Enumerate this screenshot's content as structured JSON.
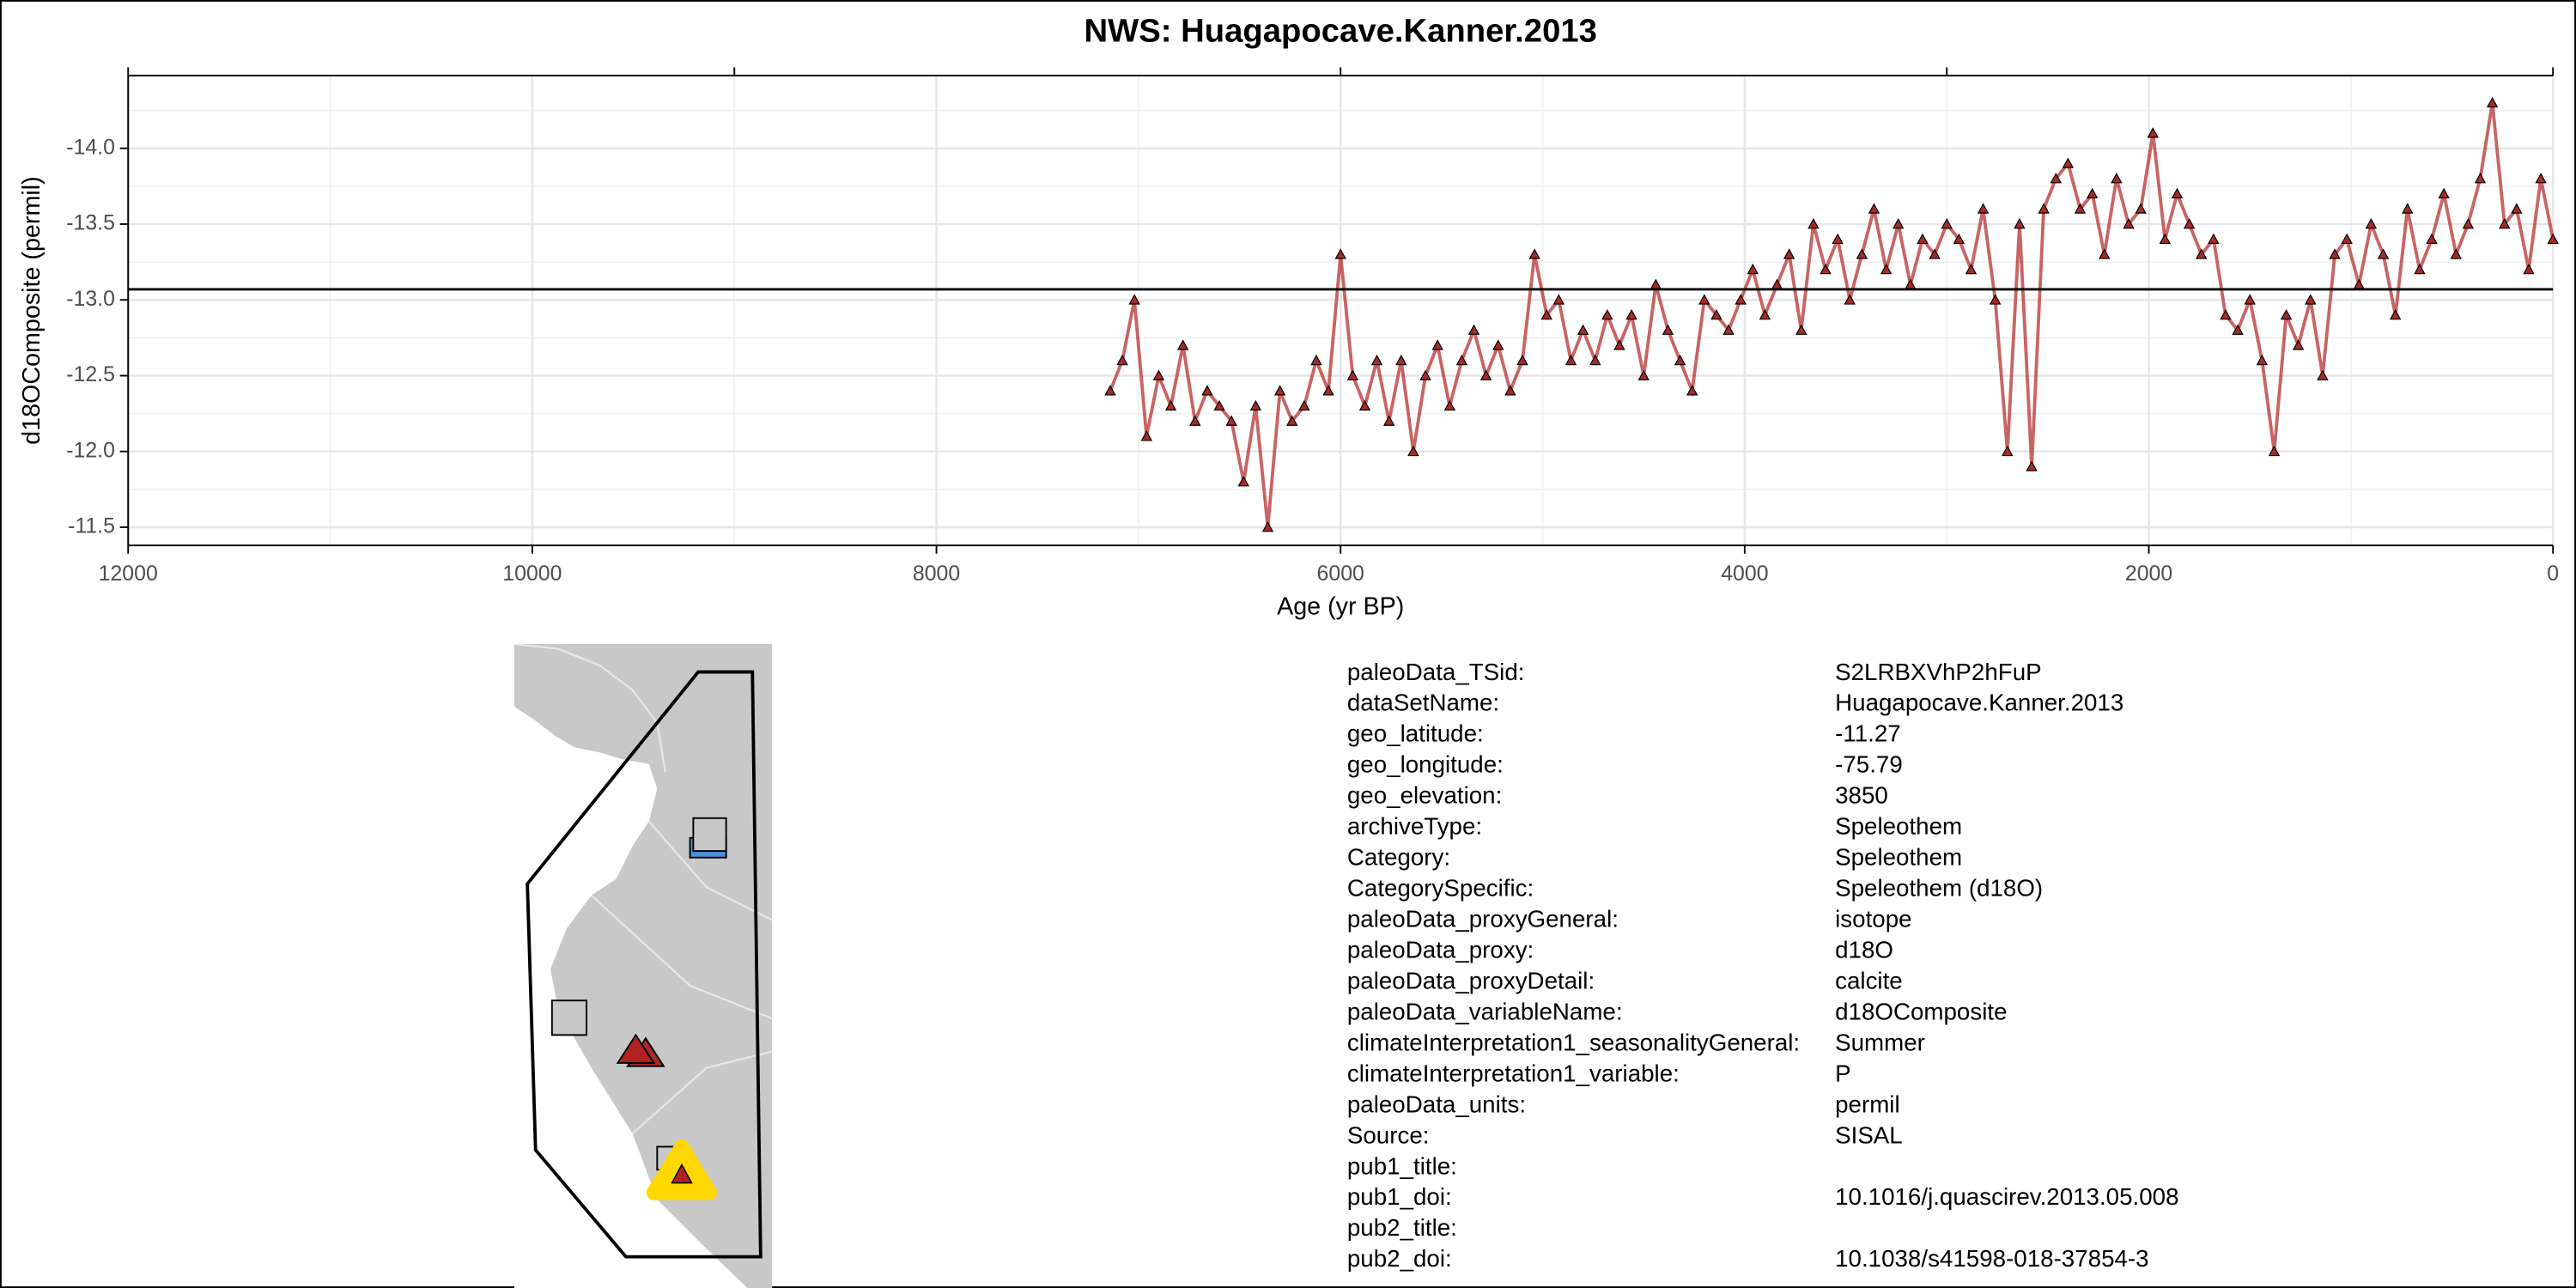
{
  "chart_data": {
    "type": "line",
    "title": "NWS: Huagapocave.Kanner.2013",
    "x_label": "Age (yr BP)",
    "y_label": "d18OComposite (permil)",
    "xlim": [
      12000,
      0
    ],
    "xticks": [
      12000,
      10000,
      8000,
      6000,
      4000,
      2000,
      0
    ],
    "x_minor_ticks": [
      11000,
      9000,
      7000,
      5000,
      3000,
      1000
    ],
    "top_ticks": [
      12000,
      9000,
      6000,
      3000,
      0
    ],
    "ylim": [
      -11.38,
      -14.48
    ],
    "yticks": [
      {
        "value": -14.0,
        "label": "-14.0"
      },
      {
        "value": -13.5,
        "label": "-13.5"
      },
      {
        "value": -13.0,
        "label": "-13.0"
      },
      {
        "value": -12.5,
        "label": "-12.5"
      },
      {
        "value": -12.0,
        "label": "-12.0"
      },
      {
        "value": -11.5,
        "label": "-11.5"
      }
    ],
    "y_minor_ticks": [
      -14.25,
      -13.75,
      -13.25,
      -12.75,
      -12.25,
      -11.75
    ],
    "grid": true,
    "hline": -13.07,
    "series": [
      {
        "name": "d18OComposite",
        "color": "#b22222",
        "marker_color": "#a52a2a",
        "x": [
          7140,
          7080,
          7020,
          6960,
          6900,
          6840,
          6780,
          6720,
          6660,
          6600,
          6540,
          6480,
          6420,
          6360,
          6300,
          6240,
          6180,
          6120,
          6060,
          6000,
          5940,
          5880,
          5820,
          5760,
          5700,
          5640,
          5580,
          5520,
          5460,
          5400,
          5340,
          5280,
          5220,
          5160,
          5100,
          5040,
          4980,
          4920,
          4860,
          4800,
          4740,
          4680,
          4620,
          4560,
          4500,
          4440,
          4380,
          4320,
          4260,
          4200,
          4140,
          4080,
          4020,
          3960,
          3900,
          3840,
          3780,
          3720,
          3660,
          3600,
          3540,
          3480,
          3420,
          3360,
          3300,
          3240,
          3180,
          3120,
          3060,
          3000,
          2940,
          2880,
          2820,
          2760,
          2700,
          2640,
          2580,
          2520,
          2460,
          2400,
          2340,
          2280,
          2220,
          2160,
          2100,
          2040,
          1980,
          1920,
          1860,
          1800,
          1740,
          1680,
          1620,
          1560,
          1500,
          1440,
          1380,
          1320,
          1260,
          1200,
          1140,
          1080,
          1020,
          960,
          900,
          840,
          780,
          720,
          660,
          600,
          540,
          480,
          420,
          360,
          300,
          240,
          180,
          120,
          60,
          0
        ],
        "values": [
          -12.4,
          -12.6,
          -13.0,
          -12.1,
          -12.5,
          -12.3,
          -12.7,
          -12.2,
          -12.4,
          -12.3,
          -12.2,
          -11.8,
          -12.3,
          -11.5,
          -12.4,
          -12.2,
          -12.3,
          -12.6,
          -12.4,
          -13.3,
          -12.5,
          -12.3,
          -12.6,
          -12.2,
          -12.6,
          -12.0,
          -12.5,
          -12.7,
          -12.3,
          -12.6,
          -12.8,
          -12.5,
          -12.7,
          -12.4,
          -12.6,
          -13.3,
          -12.9,
          -13.0,
          -12.6,
          -12.8,
          -12.6,
          -12.9,
          -12.7,
          -12.9,
          -12.5,
          -13.1,
          -12.8,
          -12.6,
          -12.4,
          -13.0,
          -12.9,
          -12.8,
          -13.0,
          -13.2,
          -12.9,
          -13.1,
          -13.3,
          -12.8,
          -13.5,
          -13.2,
          -13.4,
          -13.0,
          -13.3,
          -13.6,
          -13.2,
          -13.5,
          -13.1,
          -13.4,
          -13.3,
          -13.5,
          -13.4,
          -13.2,
          -13.6,
          -13.0,
          -12.0,
          -13.5,
          -11.9,
          -13.6,
          -13.8,
          -13.9,
          -13.6,
          -13.7,
          -13.3,
          -13.8,
          -13.5,
          -13.6,
          -14.1,
          -13.4,
          -13.7,
          -13.5,
          -13.3,
          -13.4,
          -12.9,
          -12.8,
          -13.0,
          -12.6,
          -12.0,
          -12.9,
          -12.7,
          -13.0,
          -12.5,
          -13.3,
          -13.4,
          -13.1,
          -13.5,
          -13.3,
          -12.9,
          -13.6,
          -13.2,
          -13.4,
          -13.7,
          -13.3,
          -13.5,
          -13.8,
          -14.3,
          -13.5,
          -13.6,
          -13.2,
          -13.8,
          -13.4
        ]
      }
    ]
  },
  "metadata": {
    "rows": [
      [
        "paleoData_TSid:",
        "S2LRBXVhP2hFuP"
      ],
      [
        "dataSetName:",
        "Huagapocave.Kanner.2013"
      ],
      [
        "geo_latitude:",
        "-11.27"
      ],
      [
        "geo_longitude:",
        "-75.79"
      ],
      [
        "geo_elevation:",
        "3850"
      ],
      [
        "archiveType:",
        "Speleothem"
      ],
      [
        "Category:",
        "Speleothem"
      ],
      [
        "CategorySpecific:",
        "Speleothem (d18O)"
      ],
      [
        "paleoData_proxyGeneral:",
        "isotope"
      ],
      [
        "paleoData_proxy:",
        "d18O"
      ],
      [
        "paleoData_proxyDetail:",
        "calcite"
      ],
      [
        "paleoData_variableName:",
        "d18OComposite"
      ],
      [
        "climateInterpretation1_seasonalityGeneral:",
        "Summer"
      ],
      [
        "climateInterpretation1_variable:",
        "P"
      ],
      [
        "paleoData_units:",
        "permil"
      ],
      [
        "Source:",
        "SISAL"
      ],
      [
        "pub1_title:"
      ],
      [
        "pub1_doi:",
        "10.1016/j.quascirev.2013.05.008"
      ],
      [
        "pub2_title:"
      ],
      [
        "pub2_doi:",
        "10.1038/s41598-018-37854-3"
      ]
    ]
  }
}
